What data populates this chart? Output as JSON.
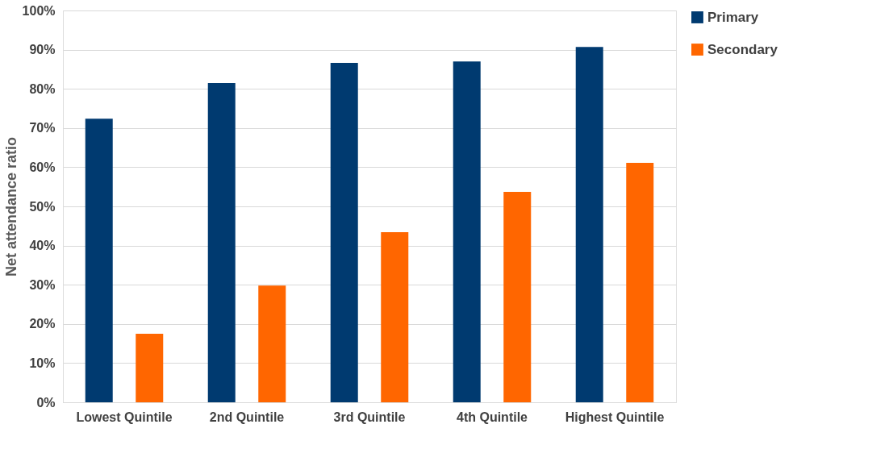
{
  "chart_data": {
    "type": "bar",
    "ylabel": "Net attendance ratio",
    "categories": [
      "Lowest Quintile",
      "2nd Quintile",
      "3rd Quintile",
      "4th Quintile",
      "Highest Quintile"
    ],
    "series": [
      {
        "name": "Primary",
        "color": "#003a70",
        "values": [
          72.4,
          81.5,
          86.6,
          87.0,
          90.7
        ]
      },
      {
        "name": "Secondary",
        "color": "#ff6600",
        "values": [
          17.5,
          29.8,
          43.4,
          53.7,
          61.1
        ]
      }
    ],
    "ylim": [
      0,
      100
    ],
    "yticks": [
      {
        "value": 0,
        "label": "0%"
      },
      {
        "value": 10,
        "label": "10%"
      },
      {
        "value": 20,
        "label": "20%"
      },
      {
        "value": 30,
        "label": "30%"
      },
      {
        "value": 40,
        "label": "40%"
      },
      {
        "value": 50,
        "label": "50%"
      },
      {
        "value": 60,
        "label": "60%"
      },
      {
        "value": 70,
        "label": "70%"
      },
      {
        "value": 80,
        "label": "80%"
      },
      {
        "value": 90,
        "label": "90%"
      },
      {
        "value": 100,
        "label": "100%"
      }
    ],
    "grid": "y",
    "legend": "right"
  }
}
